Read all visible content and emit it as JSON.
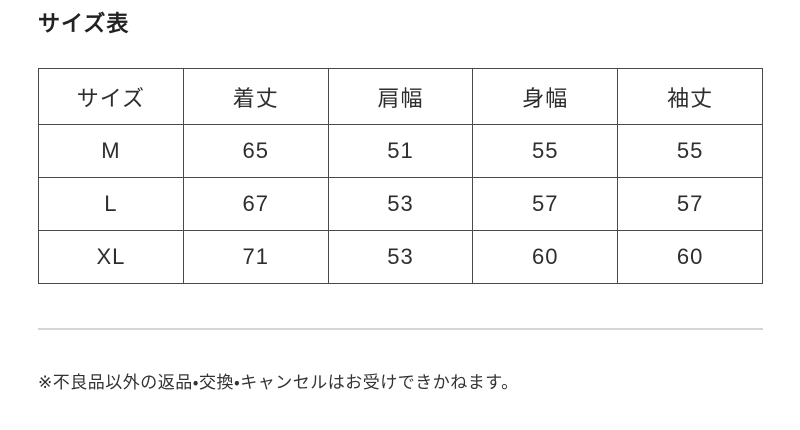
{
  "section": {
    "title": "サイズ表"
  },
  "size_table": {
    "headers": [
      "サイズ",
      "着丈",
      "肩幅",
      "身幅",
      "袖丈"
    ],
    "rows": [
      [
        "M",
        "65",
        "51",
        "55",
        "55"
      ],
      [
        "L",
        "67",
        "53",
        "57",
        "57"
      ],
      [
        "XL",
        "71",
        "53",
        "60",
        "60"
      ]
    ]
  },
  "footer": {
    "note": "※不良品以外の返品・交換・キャンセルはお受けできかねます。"
  },
  "colors": {
    "background": "#ffffff",
    "text": "#2e2e2e",
    "title_text": "#222222",
    "table_border": "#4a4a4a",
    "divider": "#d5d5d5"
  }
}
